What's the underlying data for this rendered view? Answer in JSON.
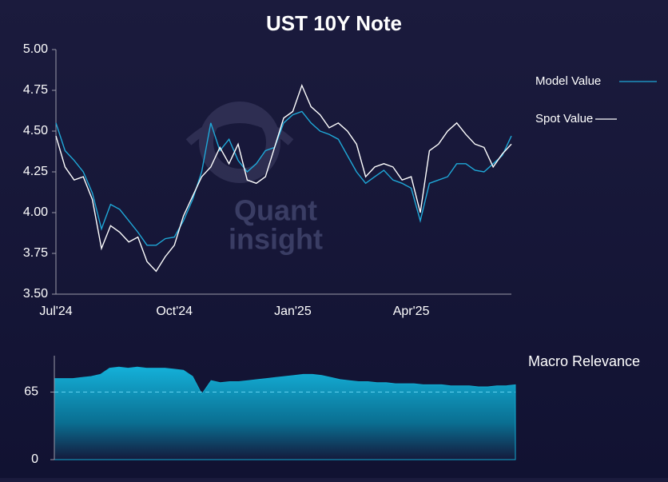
{
  "watermark": [
    "Quant",
    "insight"
  ],
  "chart_data": [
    {
      "type": "line",
      "title": "UST 10Y Note",
      "categories": [
        "Jul'24",
        null,
        null,
        null,
        null,
        null,
        null,
        null,
        null,
        null,
        null,
        null,
        null,
        "Oct'24",
        null,
        null,
        null,
        null,
        null,
        null,
        null,
        null,
        null,
        null,
        null,
        null,
        "Jan'25",
        null,
        null,
        null,
        null,
        null,
        null,
        null,
        null,
        null,
        null,
        null,
        null,
        "Apr'25",
        null,
        null,
        null,
        null,
        null,
        null,
        null,
        null,
        null,
        null,
        null
      ],
      "series": [
        {
          "name": "Model Value",
          "color": "#1fa8d8",
          "values": [
            4.55,
            4.38,
            4.32,
            4.25,
            4.12,
            3.9,
            4.05,
            4.02,
            3.95,
            3.88,
            3.8,
            3.8,
            3.84,
            3.85,
            3.95,
            4.08,
            4.25,
            4.55,
            4.38,
            4.45,
            4.32,
            4.25,
            4.3,
            4.38,
            4.4,
            4.55,
            4.6,
            4.62,
            4.55,
            4.5,
            4.48,
            4.45,
            4.35,
            4.25,
            4.18,
            4.22,
            4.26,
            4.2,
            4.18,
            4.15,
            3.95,
            4.18,
            4.2,
            4.22,
            4.3,
            4.3,
            4.26,
            4.25,
            4.3,
            4.35,
            4.47
          ]
        },
        {
          "name": "Spot Value",
          "color": "#ffffff",
          "values": [
            4.47,
            4.28,
            4.2,
            4.22,
            4.08,
            3.78,
            3.92,
            3.88,
            3.82,
            3.85,
            3.7,
            3.64,
            3.73,
            3.8,
            3.98,
            4.1,
            4.22,
            4.28,
            4.4,
            4.3,
            4.42,
            4.2,
            4.18,
            4.22,
            4.4,
            4.58,
            4.62,
            4.78,
            4.65,
            4.6,
            4.52,
            4.55,
            4.5,
            4.42,
            4.22,
            4.28,
            4.3,
            4.28,
            4.2,
            4.22,
            4.0,
            4.38,
            4.42,
            4.5,
            4.55,
            4.48,
            4.42,
            4.4,
            4.28,
            4.36,
            4.42
          ]
        }
      ],
      "ylim": [
        3.5,
        5.0
      ],
      "yticks": [
        {
          "value": 3.5,
          "label": "3.50"
        },
        {
          "value": 3.75,
          "label": "3.75"
        },
        {
          "value": 4.0,
          "label": "4.00"
        },
        {
          "value": 4.25,
          "label": "4.25"
        },
        {
          "value": 4.5,
          "label": "4.50"
        },
        {
          "value": 4.75,
          "label": "4.75"
        },
        {
          "value": 5.0,
          "label": "5.00"
        }
      ],
      "grid": false,
      "legend": "right"
    },
    {
      "type": "area",
      "title": "Macro Relevance",
      "color": "#12a9cf",
      "values": [
        78,
        78,
        78,
        79,
        80,
        82,
        88,
        89,
        88,
        89,
        88,
        88,
        88,
        87,
        86,
        80,
        63,
        76,
        74,
        75,
        75,
        76,
        77,
        78,
        79,
        80,
        81,
        82,
        82,
        81,
        79,
        77,
        76,
        75,
        75,
        74,
        74,
        73,
        73,
        73,
        72,
        72,
        72,
        71,
        71,
        71,
        70,
        70,
        71,
        71,
        72
      ],
      "ylim": [
        0,
        100
      ],
      "yticks": [
        0,
        65
      ],
      "grid": true
    }
  ]
}
